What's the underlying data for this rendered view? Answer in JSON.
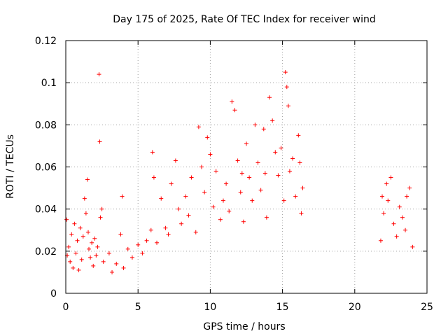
{
  "chart_data": {
    "type": "scatter",
    "title": "Day 175 of 2025, Rate Of TEC Index for receiver wind",
    "xlabel": "GPS time / hours",
    "ylabel": "ROTI / TECUs",
    "xlim": [
      0,
      25
    ],
    "ylim": [
      0,
      0.12
    ],
    "xticks": [
      0,
      5,
      10,
      15,
      20,
      25
    ],
    "xtick_labels": [
      "0",
      "5",
      "10",
      "15",
      "20",
      "25"
    ],
    "yticks": [
      0,
      0.02,
      0.04,
      0.06,
      0.08,
      0.1,
      0.12
    ],
    "ytick_labels": [
      "0",
      "0.02",
      "0.04",
      "0.06",
      "0.08",
      "0.1",
      "0.12"
    ],
    "grid": true,
    "marker": "+",
    "color": "#ff0000",
    "series": [
      {
        "name": "ROTI",
        "x": [
          0.05,
          0.1,
          0.2,
          0.3,
          0.4,
          0.5,
          0.6,
          0.7,
          0.8,
          0.9,
          1.0,
          1.1,
          1.2,
          1.3,
          1.4,
          1.5,
          1.55,
          1.6,
          1.7,
          1.8,
          1.9,
          2.0,
          2.1,
          2.2,
          2.3,
          2.35,
          2.4,
          2.5,
          2.6,
          3.0,
          3.2,
          3.5,
          3.8,
          3.9,
          4.0,
          4.3,
          4.6,
          5.0,
          5.3,
          5.6,
          5.9,
          6.0,
          6.1,
          6.3,
          6.6,
          6.9,
          7.1,
          7.3,
          7.6,
          7.8,
          8.0,
          8.3,
          8.5,
          8.7,
          9.0,
          9.2,
          9.4,
          9.6,
          9.8,
          10.0,
          10.2,
          10.4,
          10.7,
          10.9,
          11.1,
          11.3,
          11.5,
          11.7,
          11.9,
          12.1,
          12.2,
          12.3,
          12.5,
          12.7,
          12.9,
          13.1,
          13.3,
          13.5,
          13.7,
          13.8,
          13.9,
          14.1,
          14.3,
          14.5,
          14.7,
          14.9,
          15.1,
          15.2,
          15.3,
          15.4,
          15.5,
          15.7,
          15.9,
          16.1,
          16.2,
          16.3,
          16.4,
          21.8,
          21.9,
          22.0,
          22.2,
          22.3,
          22.5,
          22.7,
          22.9,
          23.1,
          23.3,
          23.5,
          23.6,
          23.8,
          24.0
        ],
        "y": [
          0.035,
          0.018,
          0.022,
          0.015,
          0.028,
          0.012,
          0.033,
          0.019,
          0.025,
          0.011,
          0.031,
          0.016,
          0.027,
          0.045,
          0.038,
          0.054,
          0.029,
          0.021,
          0.017,
          0.024,
          0.013,
          0.026,
          0.018,
          0.022,
          0.104,
          0.072,
          0.036,
          0.04,
          0.015,
          0.019,
          0.01,
          0.014,
          0.028,
          0.046,
          0.012,
          0.021,
          0.017,
          0.023,
          0.019,
          0.025,
          0.03,
          0.067,
          0.055,
          0.024,
          0.045,
          0.031,
          0.028,
          0.052,
          0.063,
          0.04,
          0.033,
          0.046,
          0.037,
          0.055,
          0.029,
          0.079,
          0.06,
          0.048,
          0.074,
          0.066,
          0.041,
          0.058,
          0.035,
          0.044,
          0.052,
          0.039,
          0.091,
          0.087,
          0.063,
          0.048,
          0.057,
          0.034,
          0.071,
          0.055,
          0.044,
          0.08,
          0.062,
          0.049,
          0.078,
          0.057,
          0.036,
          0.093,
          0.082,
          0.067,
          0.056,
          0.069,
          0.044,
          0.105,
          0.098,
          0.089,
          0.058,
          0.064,
          0.046,
          0.075,
          0.062,
          0.038,
          0.05,
          0.025,
          0.046,
          0.038,
          0.052,
          0.044,
          0.055,
          0.033,
          0.027,
          0.041,
          0.036,
          0.03,
          0.046,
          0.05,
          0.022
        ]
      }
    ]
  }
}
